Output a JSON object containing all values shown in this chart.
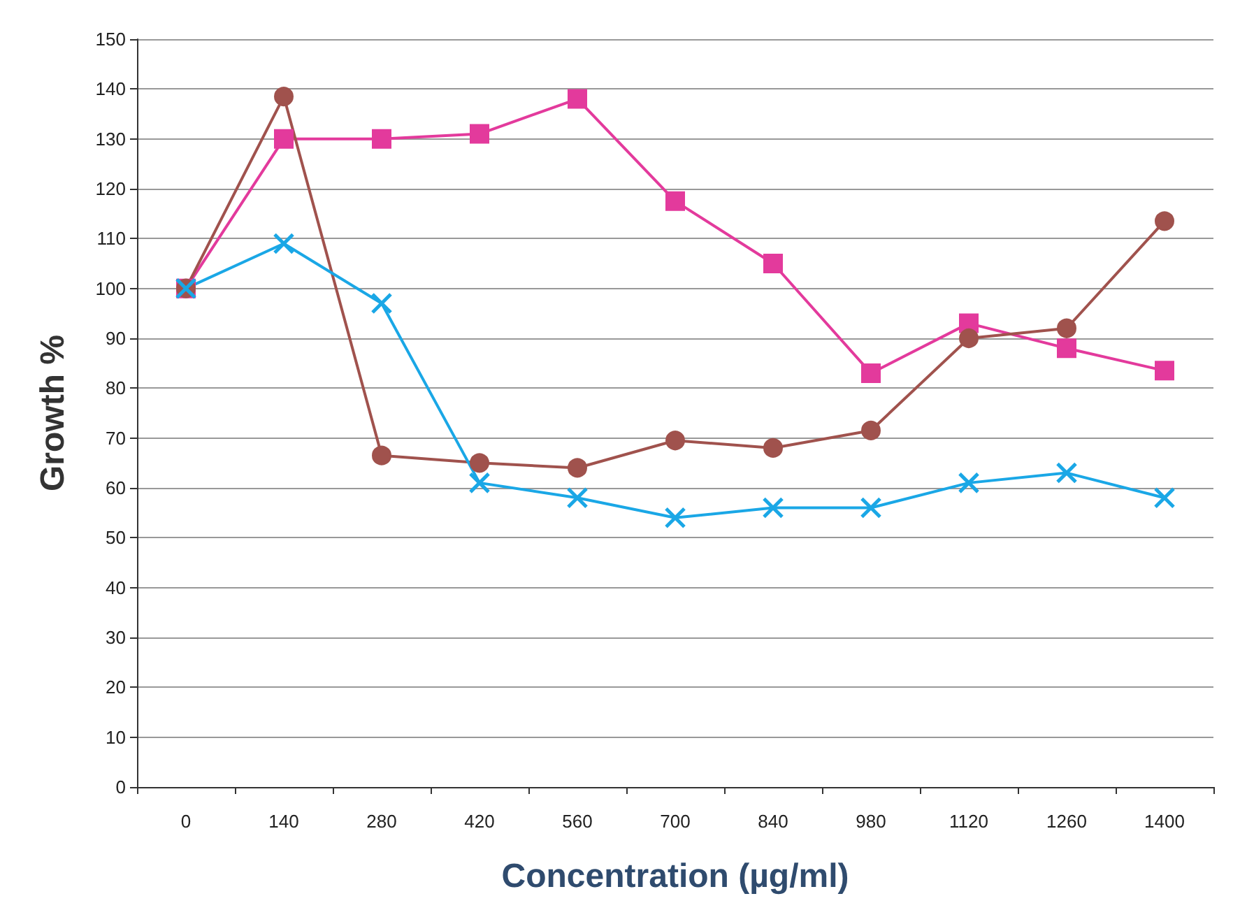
{
  "chart_data": {
    "type": "line",
    "xlabel": "Concentration (µg/ml)",
    "ylabel": "Growth %",
    "categories": [
      "0",
      "140",
      "280",
      "420",
      "560",
      "700",
      "840",
      "980",
      "1120",
      "1260",
      "1400"
    ],
    "series": [
      {
        "color": "#e33a9c",
        "marker": "square",
        "values": [
          100,
          130,
          130,
          131,
          138,
          117.5,
          105,
          83,
          93,
          88,
          83.5
        ]
      },
      {
        "color": "#a0524d",
        "marker": "circle",
        "values": [
          100,
          138.5,
          66.5,
          65,
          64,
          69.5,
          68,
          71.5,
          90,
          92,
          113.5
        ]
      },
      {
        "color": "#1aa7e6",
        "marker": "cross",
        "values": [
          100,
          109,
          97,
          61,
          58,
          54,
          56,
          56,
          61,
          63,
          58
        ]
      }
    ],
    "ylim": [
      0,
      150
    ],
    "yticks": [
      0,
      10,
      20,
      30,
      40,
      50,
      60,
      70,
      80,
      90,
      100,
      110,
      120,
      130,
      140,
      150
    ],
    "grid": "y",
    "line_style": "solid"
  }
}
